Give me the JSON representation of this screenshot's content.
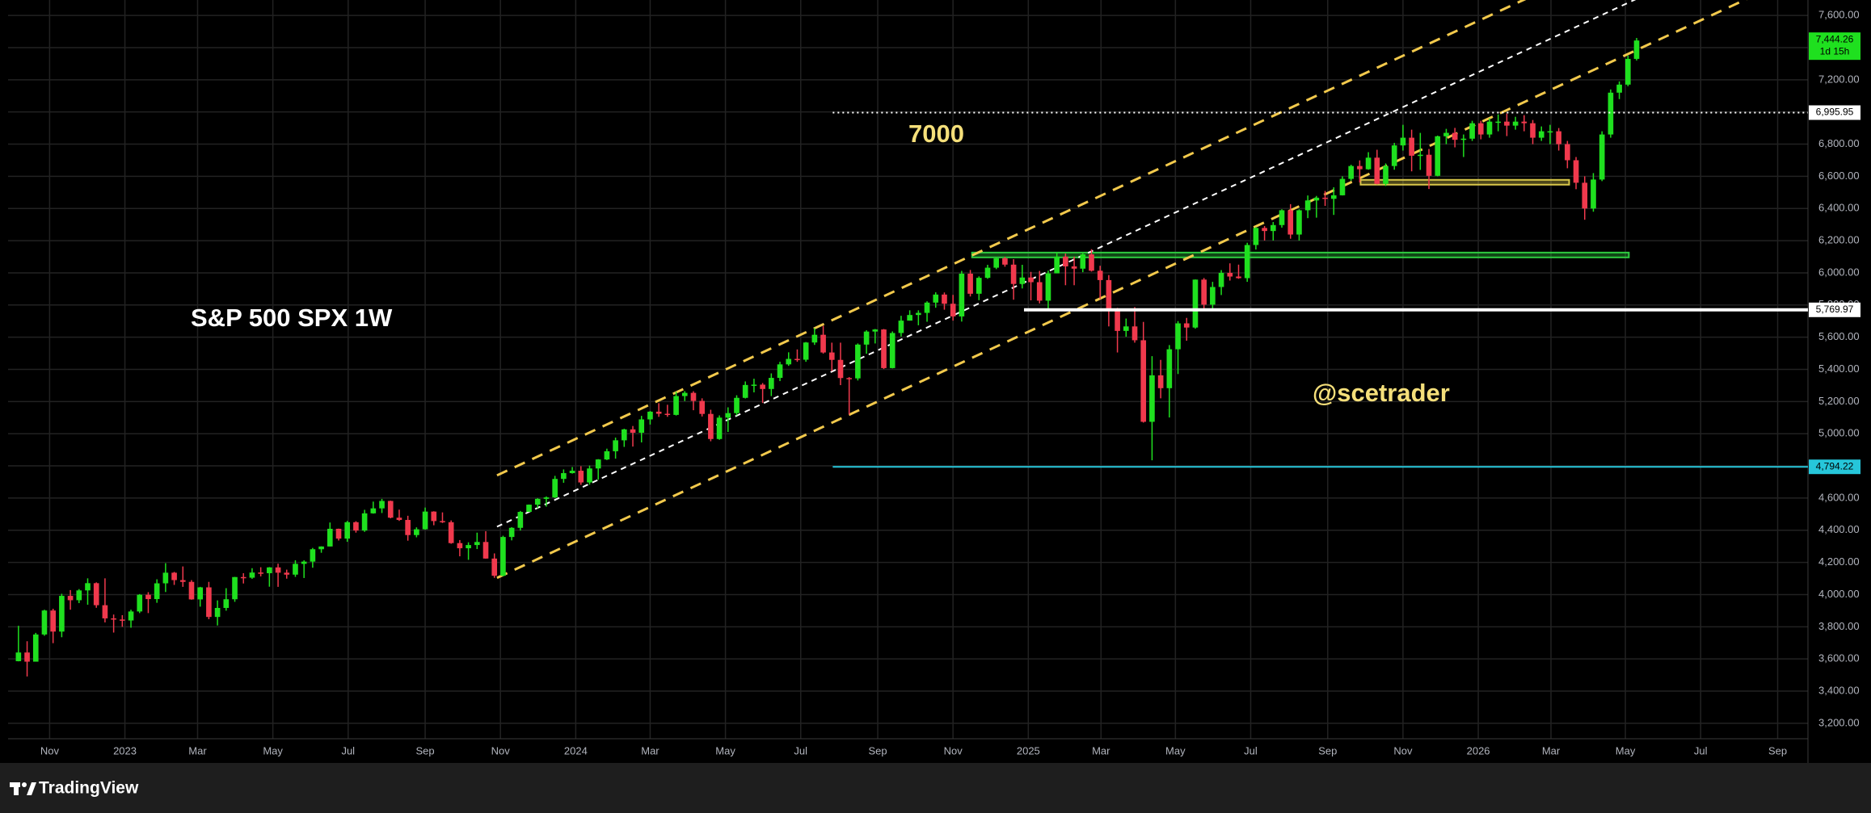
{
  "chart_data": {
    "type": "candlestick",
    "up_color": "#1fe01f",
    "down_color": "#f0394d",
    "xlim": [
      -1.2,
      206.8
    ],
    "ylim": [
      3104,
      7696
    ],
    "grid": true,
    "xticks": [
      {
        "value": 3.6,
        "label": "Nov"
      },
      {
        "value": 12.3,
        "label": "2023"
      },
      {
        "value": 20.7,
        "label": "Mar"
      },
      {
        "value": 29.4,
        "label": "May"
      },
      {
        "value": 38.1,
        "label": "Jul"
      },
      {
        "value": 47.0,
        "label": "Sep"
      },
      {
        "value": 55.7,
        "label": "Nov"
      },
      {
        "value": 64.4,
        "label": "2024"
      },
      {
        "value": 73.0,
        "label": "Mar"
      },
      {
        "value": 81.7,
        "label": "May"
      },
      {
        "value": 90.4,
        "label": "Jul"
      },
      {
        "value": 99.3,
        "label": "Sep"
      },
      {
        "value": 108.0,
        "label": "Nov"
      },
      {
        "value": 116.7,
        "label": "2025"
      },
      {
        "value": 125.1,
        "label": "Mar"
      },
      {
        "value": 133.7,
        "label": "May"
      },
      {
        "value": 142.4,
        "label": "Jul"
      },
      {
        "value": 151.3,
        "label": "Sep"
      },
      {
        "value": 160.0,
        "label": "Nov"
      },
      {
        "value": 168.7,
        "label": "2026"
      },
      {
        "value": 177.1,
        "label": "Mar"
      },
      {
        "value": 185.7,
        "label": "May"
      },
      {
        "value": 194.4,
        "label": "Jul"
      },
      {
        "value": 203.3,
        "label": "Sep"
      }
    ],
    "yticks": [
      {
        "value": 3200,
        "label": "3,200.00"
      },
      {
        "value": 3400,
        "label": "3,400.00"
      },
      {
        "value": 3600,
        "label": "3,600.00"
      },
      {
        "value": 3800,
        "label": "3,800.00"
      },
      {
        "value": 4000,
        "label": "4,000.00"
      },
      {
        "value": 4200,
        "label": "4,200.00"
      },
      {
        "value": 4400,
        "label": "4,400.00"
      },
      {
        "value": 4600,
        "label": "4,600.00"
      },
      {
        "value": 4800,
        "label": "4,800.00"
      },
      {
        "value": 5000,
        "label": "5,000.00"
      },
      {
        "value": 5200,
        "label": "5,200.00"
      },
      {
        "value": 5400,
        "label": "5,400.00"
      },
      {
        "value": 5600,
        "label": "5,600.00"
      },
      {
        "value": 5800,
        "label": "5,800.00"
      },
      {
        "value": 6000,
        "label": "6,000.00"
      },
      {
        "value": 6200,
        "label": "6,200.00"
      },
      {
        "value": 6400,
        "label": "6,400.00"
      },
      {
        "value": 6600,
        "label": "6,600.00"
      },
      {
        "value": 6800,
        "label": "6,800.00"
      },
      {
        "value": 7000,
        "label": "7,000.00"
      },
      {
        "value": 7200,
        "label": "7,200.00"
      },
      {
        "value": 7400,
        "label": "7,400.00"
      },
      {
        "value": 7600,
        "label": "7,600.00"
      }
    ],
    "ohlc": [
      [
        3586,
        3806,
        3585,
        3640
      ],
      [
        3640,
        3710,
        3491,
        3583
      ],
      [
        3583,
        3762,
        3590,
        3752
      ],
      [
        3752,
        3906,
        3744,
        3901
      ],
      [
        3901,
        3912,
        3698,
        3770
      ],
      [
        3770,
        4005,
        3735,
        3992
      ],
      [
        3992,
        4028,
        3906,
        3965
      ],
      [
        3965,
        4034,
        3947,
        4026
      ],
      [
        4026,
        4101,
        3937,
        4071
      ],
      [
        4071,
        4076,
        3918,
        3934
      ],
      [
        3934,
        4101,
        3827,
        3852
      ],
      [
        3852,
        3876,
        3764,
        3845
      ],
      [
        3845,
        3872,
        3800,
        3839
      ],
      [
        3839,
        3906,
        3794,
        3895
      ],
      [
        3895,
        4003,
        3885,
        3999
      ],
      [
        3999,
        4015,
        3885,
        3972
      ],
      [
        3972,
        4095,
        3949,
        4070
      ],
      [
        4070,
        4195,
        4016,
        4136
      ],
      [
        4136,
        4141,
        4060,
        4090
      ],
      [
        4090,
        4175,
        4048,
        4079
      ],
      [
        4079,
        4090,
        3968,
        3970
      ],
      [
        3970,
        4048,
        3925,
        4045
      ],
      [
        4045,
        4079,
        3847,
        3861
      ],
      [
        3861,
        3964,
        3808,
        3917
      ],
      [
        3917,
        4040,
        3900,
        3971
      ],
      [
        3971,
        4110,
        3955,
        4109
      ],
      [
        4109,
        4133,
        4069,
        4105
      ],
      [
        4105,
        4164,
        4098,
        4137
      ],
      [
        4137,
        4170,
        4113,
        4133
      ],
      [
        4133,
        4171,
        4049,
        4169
      ],
      [
        4169,
        4192,
        4048,
        4136
      ],
      [
        4136,
        4155,
        4099,
        4124
      ],
      [
        4124,
        4213,
        4110,
        4191
      ],
      [
        4191,
        4213,
        4103,
        4205
      ],
      [
        4205,
        4290,
        4167,
        4282
      ],
      [
        4282,
        4300,
        4260,
        4299
      ],
      [
        4299,
        4448,
        4299,
        4409
      ],
      [
        4409,
        4410,
        4336,
        4348
      ],
      [
        4348,
        4458,
        4328,
        4450
      ],
      [
        4450,
        4456,
        4385,
        4398
      ],
      [
        4398,
        4527,
        4390,
        4505
      ],
      [
        4505,
        4578,
        4503,
        4536
      ],
      [
        4536,
        4595,
        4507,
        4582
      ],
      [
        4582,
        4584,
        4474,
        4478
      ],
      [
        4478,
        4528,
        4458,
        4464
      ],
      [
        4464,
        4490,
        4335,
        4370
      ],
      [
        4370,
        4418,
        4356,
        4406
      ],
      [
        4406,
        4541,
        4403,
        4516
      ],
      [
        4516,
        4518,
        4431,
        4457
      ],
      [
        4457,
        4511,
        4445,
        4450
      ],
      [
        4450,
        4461,
        4316,
        4320
      ],
      [
        4320,
        4339,
        4238,
        4288
      ],
      [
        4288,
        4325,
        4216,
        4308
      ],
      [
        4308,
        4385,
        4283,
        4327
      ],
      [
        4327,
        4394,
        4223,
        4224
      ],
      [
        4224,
        4256,
        4104,
        4117
      ],
      [
        4117,
        4366,
        4114,
        4358
      ],
      [
        4358,
        4419,
        4337,
        4415
      ],
      [
        4415,
        4520,
        4398,
        4514
      ],
      [
        4514,
        4560,
        4515,
        4559
      ],
      [
        4559,
        4599,
        4537,
        4595
      ],
      [
        4595,
        4610,
        4547,
        4604
      ],
      [
        4604,
        4738,
        4600,
        4719
      ],
      [
        4719,
        4778,
        4695,
        4755
      ],
      [
        4755,
        4793,
        4752,
        4770
      ],
      [
        4770,
        4798,
        4682,
        4697
      ],
      [
        4697,
        4802,
        4683,
        4784
      ],
      [
        4784,
        4842,
        4714,
        4840
      ],
      [
        4840,
        4907,
        4836,
        4891
      ],
      [
        4891,
        4976,
        4845,
        4959
      ],
      [
        4959,
        5031,
        4918,
        5027
      ],
      [
        5027,
        5048,
        4920,
        5006
      ],
      [
        5006,
        5111,
        4946,
        5089
      ],
      [
        5089,
        5141,
        5057,
        5137
      ],
      [
        5137,
        5190,
        5105,
        5124
      ],
      [
        5124,
        5180,
        5105,
        5117
      ],
      [
        5117,
        5261,
        5113,
        5234
      ],
      [
        5234,
        5265,
        5203,
        5254
      ],
      [
        5254,
        5264,
        5146,
        5204
      ],
      [
        5204,
        5220,
        5107,
        5123
      ],
      [
        5123,
        5149,
        4953,
        4967
      ],
      [
        4967,
        5114,
        4962,
        5100
      ],
      [
        5100,
        5164,
        5011,
        5128
      ],
      [
        5128,
        5239,
        5114,
        5223
      ],
      [
        5223,
        5325,
        5219,
        5303
      ],
      [
        5303,
        5342,
        5257,
        5305
      ],
      [
        5305,
        5315,
        5191,
        5278
      ],
      [
        5278,
        5375,
        5234,
        5347
      ],
      [
        5347,
        5447,
        5327,
        5431
      ],
      [
        5431,
        5506,
        5422,
        5465
      ],
      [
        5465,
        5524,
        5447,
        5460
      ],
      [
        5460,
        5570,
        5447,
        5567
      ],
      [
        5567,
        5656,
        5552,
        5615
      ],
      [
        5615,
        5670,
        5498,
        5505
      ],
      [
        5505,
        5566,
        5390,
        5459
      ],
      [
        5459,
        5566,
        5302,
        5346
      ],
      [
        5346,
        5352,
        5119,
        5344
      ],
      [
        5344,
        5561,
        5331,
        5554
      ],
      [
        5554,
        5643,
        5497,
        5635
      ],
      [
        5635,
        5651,
        5561,
        5648
      ],
      [
        5648,
        5651,
        5402,
        5408
      ],
      [
        5408,
        5636,
        5406,
        5626
      ],
      [
        5626,
        5733,
        5604,
        5703
      ],
      [
        5703,
        5767,
        5703,
        5738
      ],
      [
        5738,
        5767,
        5674,
        5751
      ],
      [
        5751,
        5823,
        5696,
        5815
      ],
      [
        5815,
        5879,
        5783,
        5865
      ],
      [
        5865,
        5878,
        5771,
        5808
      ],
      [
        5808,
        5863,
        5703,
        5729
      ],
      [
        5729,
        6012,
        5697,
        5995
      ],
      [
        5995,
        6018,
        5853,
        5870
      ],
      [
        5870,
        5978,
        5830,
        5969
      ],
      [
        5969,
        6050,
        5963,
        6032
      ],
      [
        6032,
        6100,
        6023,
        6090
      ],
      [
        6090,
        6100,
        6038,
        6051
      ],
      [
        6051,
        6085,
        5833,
        5931
      ],
      [
        5931,
        6050,
        5903,
        5971
      ],
      [
        5971,
        6006,
        5829,
        5942
      ],
      [
        5942,
        6012,
        5810,
        5827
      ],
      [
        5827,
        6014,
        5773,
        5997
      ],
      [
        5997,
        6128,
        5997,
        6101
      ],
      [
        6101,
        6120,
        5923,
        6040
      ],
      [
        6040,
        6101,
        5923,
        6026
      ],
      [
        6026,
        6127,
        6004,
        6115
      ],
      [
        6115,
        6147,
        6008,
        6013
      ],
      [
        6013,
        6044,
        5837,
        5955
      ],
      [
        5955,
        5986,
        5667,
        5770
      ],
      [
        5770,
        5782,
        5505,
        5639
      ],
      [
        5639,
        5716,
        5603,
        5667
      ],
      [
        5667,
        5787,
        5566,
        5581
      ],
      [
        5581,
        5695,
        5069,
        5074
      ],
      [
        5074,
        5482,
        4835,
        5363
      ],
      [
        5363,
        5459,
        5220,
        5283
      ],
      [
        5283,
        5551,
        5101,
        5525
      ],
      [
        5525,
        5700,
        5371,
        5686
      ],
      [
        5686,
        5720,
        5578,
        5660
      ],
      [
        5660,
        5959,
        5653,
        5958
      ],
      [
        5958,
        5968,
        5768,
        5802
      ],
      [
        5802,
        5944,
        5767,
        5912
      ],
      [
        5912,
        6017,
        5862,
        6000
      ],
      [
        6000,
        6059,
        5952,
        5977
      ],
      [
        5977,
        6051,
        5963,
        5967
      ],
      [
        5967,
        6187,
        5944,
        6173
      ],
      [
        6173,
        6284,
        6145,
        6279
      ],
      [
        6279,
        6291,
        6201,
        6260
      ],
      [
        6260,
        6316,
        6201,
        6297
      ],
      [
        6297,
        6395,
        6281,
        6389
      ],
      [
        6389,
        6427,
        6212,
        6238
      ],
      [
        6238,
        6395,
        6201,
        6389
      ],
      [
        6389,
        6481,
        6340,
        6450
      ],
      [
        6450,
        6478,
        6343,
        6467
      ],
      [
        6467,
        6509,
        6416,
        6460
      ],
      [
        6460,
        6532,
        6360,
        6482
      ],
      [
        6482,
        6600,
        6481,
        6584
      ],
      [
        6584,
        6672,
        6573,
        6664
      ],
      [
        6664,
        6699,
        6562,
        6644
      ],
      [
        6644,
        6750,
        6641,
        6716
      ],
      [
        6716,
        6765,
        6550,
        6553
      ],
      [
        6553,
        6680,
        6540,
        6664
      ],
      [
        6664,
        6808,
        6641,
        6792
      ],
      [
        6792,
        6920,
        6760,
        6840
      ],
      [
        6840,
        6890,
        6631,
        6728
      ],
      [
        6728,
        6870,
        6640,
        6734
      ],
      [
        6734,
        6770,
        6521,
        6603
      ],
      [
        6603,
        6853,
        6600,
        6849
      ],
      [
        6849,
        6895,
        6800,
        6870
      ],
      [
        6870,
        6901,
        6780,
        6827
      ],
      [
        6827,
        6860,
        6720,
        6834
      ],
      [
        6834,
        6945,
        6820,
        6930
      ],
      [
        6930,
        6945,
        6830,
        6860
      ],
      [
        6860,
        6960,
        6840,
        6940
      ],
      [
        6940,
        6985,
        6880,
        6940
      ],
      [
        6940,
        6990,
        6850,
        6915
      ],
      [
        6915,
        6970,
        6890,
        6940
      ],
      [
        6940,
        6980,
        6880,
        6930
      ],
      [
        6930,
        6950,
        6800,
        6840
      ],
      [
        6840,
        6910,
        6820,
        6880
      ],
      [
        6880,
        6920,
        6800,
        6880
      ],
      [
        6880,
        6900,
        6760,
        6800
      ],
      [
        6800,
        6820,
        6650,
        6700
      ],
      [
        6700,
        6720,
        6520,
        6560
      ],
      [
        6560,
        6600,
        6330,
        6400
      ],
      [
        6400,
        6620,
        6380,
        6580
      ],
      [
        6580,
        6880,
        6570,
        6860
      ],
      [
        6860,
        7140,
        6840,
        7120
      ],
      [
        7120,
        7190,
        7080,
        7170
      ],
      [
        7170,
        7350,
        7160,
        7330
      ],
      [
        7330,
        7460,
        7320,
        7444.26
      ]
    ],
    "channel": [
      {
        "color": "#f2c94c",
        "points": [
          [
            55.3,
            4741
          ],
          [
            200,
            8346
          ]
        ]
      },
      {
        "color": "#ffffff",
        "points": [
          [
            55.3,
            4422
          ],
          [
            200,
            8027
          ]
        ]
      },
      {
        "color": "#f2c94c",
        "points": [
          [
            55.3,
            4104
          ],
          [
            200,
            7709
          ]
        ]
      }
    ],
    "zones": [
      {
        "color": "#2ecc40",
        "x": [
          110.2,
          186.1
        ],
        "y": [
          6096,
          6126
        ]
      },
      {
        "color": "#d9c84a",
        "x": [
          155.1,
          179.2
        ],
        "y": [
          6548,
          6578
        ]
      }
    ],
    "levels": [
      {
        "value": 6995.95,
        "label": "6,995.95",
        "color": "#ffffff",
        "style": "dotted",
        "start": 94.1
      },
      {
        "value": 5769.97,
        "label": "5,769.97",
        "color": "#ffffff",
        "style": "solid",
        "start": 116.2
      },
      {
        "value": 4794.22,
        "label": "4,794.22",
        "color": "#26c6da",
        "style": "solid",
        "start": 94.1
      }
    ],
    "last_price": {
      "value": 7444.26,
      "label": "7,444.26",
      "countdown": "1d 15h",
      "color": "#1fe01f"
    },
    "annotations": [
      "S&P 500 SPX 1W",
      "7000",
      "@scetrader"
    ]
  },
  "footer": {
    "brand": "TradingView"
  }
}
